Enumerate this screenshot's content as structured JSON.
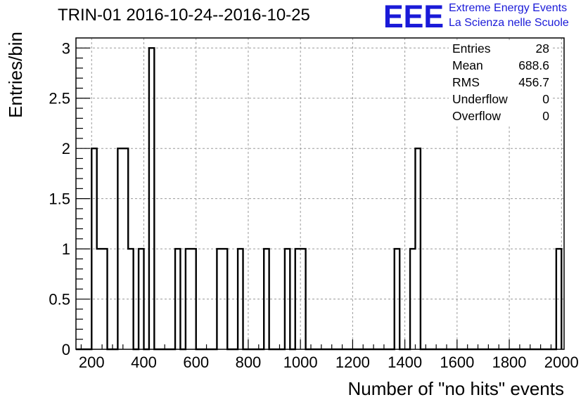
{
  "title": "TRIN-01 2016-10-24--2016-10-25",
  "logo": {
    "mark": "EEE",
    "line1": "Extreme Energy Events",
    "line2": "La Scienza nelle Scuole",
    "color": "#1a1ad8"
  },
  "stats": [
    {
      "label": "Entries",
      "value": "28"
    },
    {
      "label": "Mean",
      "value": "688.6"
    },
    {
      "label": "RMS",
      "value": "456.7"
    },
    {
      "label": "Underflow",
      "value": "0"
    },
    {
      "label": "Overflow",
      "value": "0"
    }
  ],
  "chart_data": {
    "type": "bar",
    "style": "step-histogram",
    "xlabel": "Number of \"no hits\" events",
    "ylabel": "Entries/bin",
    "xlim": [
      140,
      2010
    ],
    "ylim": [
      0,
      3.1
    ],
    "bin_width": 20,
    "xticks": [
      200,
      400,
      600,
      800,
      1000,
      1200,
      1400,
      1600,
      1800,
      2000
    ],
    "yticks": [
      0,
      0.5,
      1,
      1.5,
      2,
      2.5,
      3
    ],
    "ytick_labels": [
      "0",
      "0.5",
      "1",
      "1.5",
      "2",
      "2.5",
      "3"
    ],
    "grid": true,
    "bins": [
      {
        "x": 200,
        "value": 2
      },
      {
        "x": 220,
        "value": 1
      },
      {
        "x": 240,
        "value": 1
      },
      {
        "x": 300,
        "value": 2
      },
      {
        "x": 320,
        "value": 2
      },
      {
        "x": 340,
        "value": 1
      },
      {
        "x": 380,
        "value": 1
      },
      {
        "x": 420,
        "value": 3
      },
      {
        "x": 520,
        "value": 1
      },
      {
        "x": 560,
        "value": 1
      },
      {
        "x": 580,
        "value": 1
      },
      {
        "x": 680,
        "value": 1
      },
      {
        "x": 700,
        "value": 1
      },
      {
        "x": 760,
        "value": 1
      },
      {
        "x": 860,
        "value": 1
      },
      {
        "x": 940,
        "value": 1
      },
      {
        "x": 980,
        "value": 1
      },
      {
        "x": 1000,
        "value": 1
      },
      {
        "x": 1360,
        "value": 1
      },
      {
        "x": 1420,
        "value": 1
      },
      {
        "x": 1440,
        "value": 2
      },
      {
        "x": 1980,
        "value": 1
      }
    ]
  }
}
